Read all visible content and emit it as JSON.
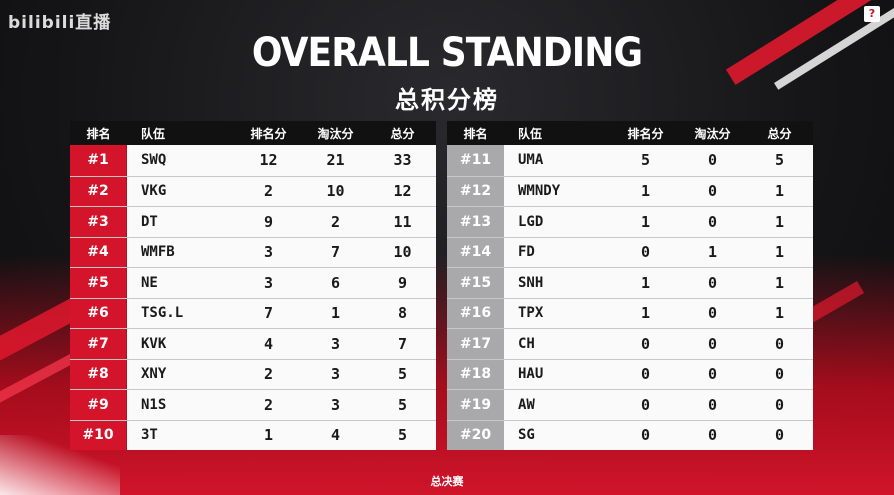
{
  "logo": "bilibili直播",
  "title": "OVERALL STANDING",
  "subtitle": "总积分榜",
  "help_label": "?",
  "headers": {
    "rank": "排名",
    "team": "队伍",
    "placement": "排名分",
    "elim": "淘汰分",
    "total": "总分"
  },
  "left_rows": [
    {
      "rank": "#1",
      "team": "SWQ",
      "placement": "12",
      "elim": "21",
      "total": "33"
    },
    {
      "rank": "#2",
      "team": "VKG",
      "placement": "2",
      "elim": "10",
      "total": "12"
    },
    {
      "rank": "#3",
      "team": "DT",
      "placement": "9",
      "elim": "2",
      "total": "11"
    },
    {
      "rank": "#4",
      "team": "WMFB",
      "placement": "3",
      "elim": "7",
      "total": "10"
    },
    {
      "rank": "#5",
      "team": "NE",
      "placement": "3",
      "elim": "6",
      "total": "9"
    },
    {
      "rank": "#6",
      "team": "TSG.L",
      "placement": "7",
      "elim": "1",
      "total": "8"
    },
    {
      "rank": "#7",
      "team": "KVK",
      "placement": "4",
      "elim": "3",
      "total": "7"
    },
    {
      "rank": "#8",
      "team": "XNY",
      "placement": "2",
      "elim": "3",
      "total": "5"
    },
    {
      "rank": "#9",
      "team": "N1S",
      "placement": "2",
      "elim": "3",
      "total": "5"
    },
    {
      "rank": "#10",
      "team": "3T",
      "placement": "1",
      "elim": "4",
      "total": "5"
    }
  ],
  "right_rows": [
    {
      "rank": "#11",
      "team": "UMA",
      "placement": "5",
      "elim": "0",
      "total": "5"
    },
    {
      "rank": "#12",
      "team": "WMNDY",
      "placement": "1",
      "elim": "0",
      "total": "1"
    },
    {
      "rank": "#13",
      "team": "LGD",
      "placement": "1",
      "elim": "0",
      "total": "1"
    },
    {
      "rank": "#14",
      "team": "FD",
      "placement": "0",
      "elim": "1",
      "total": "1"
    },
    {
      "rank": "#15",
      "team": "SNH",
      "placement": "1",
      "elim": "0",
      "total": "1"
    },
    {
      "rank": "#16",
      "team": "TPX",
      "placement": "1",
      "elim": "0",
      "total": "1"
    },
    {
      "rank": "#17",
      "team": "CH",
      "placement": "0",
      "elim": "0",
      "total": "0"
    },
    {
      "rank": "#18",
      "team": "HAU",
      "placement": "0",
      "elim": "0",
      "total": "0"
    },
    {
      "rank": "#19",
      "team": "AW",
      "placement": "0",
      "elim": "0",
      "total": "0"
    },
    {
      "rank": "#20",
      "team": "SG",
      "placement": "0",
      "elim": "0",
      "total": "0"
    }
  ],
  "footer": "总决赛",
  "colors": {
    "accent": "#d3142a",
    "rank_gray": "#a9a9ab",
    "row_bg": "#fafafa"
  }
}
